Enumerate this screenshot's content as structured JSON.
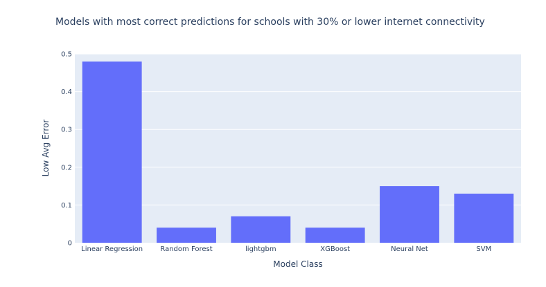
{
  "chart_data": {
    "type": "bar",
    "title": "Models with most correct predictions for schools with 30% or lower internet connectivity",
    "xlabel": "Model Class",
    "ylabel": "Low Avg Error",
    "categories": [
      "Linear Regression",
      "Random Forest",
      "lightgbm",
      "XGBoost",
      "Neural Net",
      "SVM"
    ],
    "values": [
      0.48,
      0.04,
      0.07,
      0.04,
      0.15,
      0.13
    ],
    "ylim": [
      0,
      0.5
    ],
    "yticks": [
      0,
      0.1,
      0.2,
      0.3,
      0.4,
      0.5
    ],
    "ytick_labels": [
      "0",
      "0.1",
      "0.2",
      "0.3",
      "0.4",
      "0.5"
    ],
    "grid": true,
    "colors": {
      "bar": "#636efa",
      "plot_bg": "#e5ecf6",
      "grid": "#ffffff",
      "text": "#2a3f5f"
    }
  }
}
